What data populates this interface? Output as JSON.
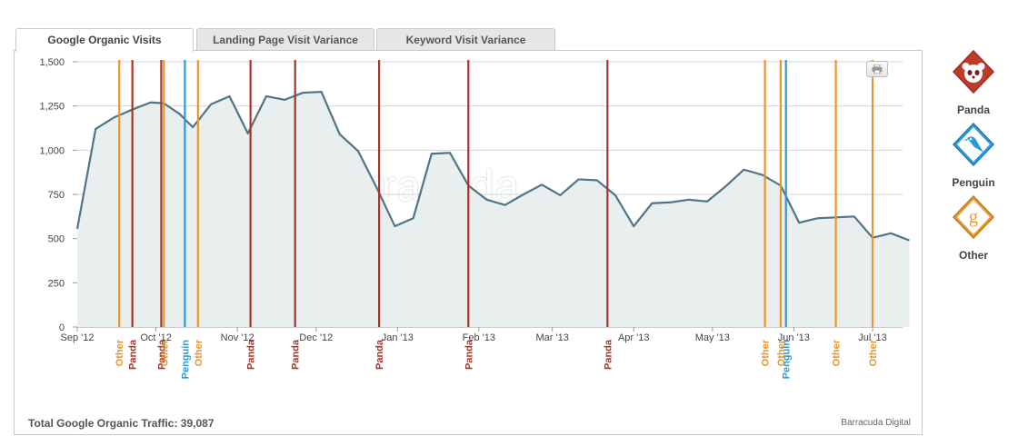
{
  "tabs": [
    {
      "label": "Google Organic Visits",
      "active": true
    },
    {
      "label": "Landing Page Visit Variance",
      "active": false
    },
    {
      "label": "Keyword Visit Variance",
      "active": false
    }
  ],
  "footer": {
    "total_label": "Total Google Organic Traffic: 39,087",
    "brand": "Barracuda Digital"
  },
  "watermark": "barracuda",
  "legend": [
    {
      "label": "Panda",
      "icon": "panda-icon",
      "color": "#c0392b"
    },
    {
      "label": "Penguin",
      "icon": "penguin-icon",
      "color": "#2c9ad8"
    },
    {
      "label": "Other",
      "icon": "google-g-icon",
      "color": "#e8962e"
    }
  ],
  "colors": {
    "line": "#4f7586",
    "area": "#e9efef",
    "grid": "#d6d6d6",
    "panda": "#a4362a",
    "penguin": "#2c9ad8",
    "other": "#e8962e"
  },
  "chart_data": {
    "type": "area",
    "title": "",
    "xlabel": "",
    "ylabel": "",
    "ylim": [
      0,
      1500
    ],
    "y_ticks": [
      "0",
      "250",
      "500",
      "750",
      "1,000",
      "1,250",
      "1,500"
    ],
    "y_tick_values": [
      0,
      250,
      500,
      750,
      1000,
      1250,
      1500
    ],
    "x_tick_labels": [
      "Sep '12",
      "Oct '12",
      "Nov '12",
      "Dec '12",
      "Jan '13",
      "Feb '13",
      "Mar '13",
      "Apr '13",
      "May '13",
      "Jun '13",
      "Jul '13"
    ],
    "x_tick_dates": [
      "2012-09-01",
      "2012-10-01",
      "2012-11-01",
      "2012-12-01",
      "2013-01-01",
      "2013-02-01",
      "2013-03-01",
      "2013-04-01",
      "2013-05-01",
      "2013-06-01",
      "2013-07-01"
    ],
    "grid": true,
    "series": [
      {
        "values": [
          {
            "x": "2012-09-01",
            "y": 555
          },
          {
            "x": "2012-09-08",
            "y": 1120
          },
          {
            "x": "2012-09-15",
            "y": 1185
          },
          {
            "x": "2012-09-22",
            "y": 1230
          },
          {
            "x": "2012-09-29",
            "y": 1270
          },
          {
            "x": "2012-10-04",
            "y": 1265
          },
          {
            "x": "2012-10-10",
            "y": 1205
          },
          {
            "x": "2012-10-15",
            "y": 1130
          },
          {
            "x": "2012-10-22",
            "y": 1260
          },
          {
            "x": "2012-10-29",
            "y": 1305
          },
          {
            "x": "2012-11-05",
            "y": 1095
          },
          {
            "x": "2012-11-12",
            "y": 1305
          },
          {
            "x": "2012-11-19",
            "y": 1285
          },
          {
            "x": "2012-11-26",
            "y": 1325
          },
          {
            "x": "2012-12-03",
            "y": 1330
          },
          {
            "x": "2012-12-10",
            "y": 1090
          },
          {
            "x": "2012-12-17",
            "y": 995
          },
          {
            "x": "2012-12-24",
            "y": 790
          },
          {
            "x": "2012-12-31",
            "y": 570
          },
          {
            "x": "2013-01-07",
            "y": 615
          },
          {
            "x": "2013-01-14",
            "y": 980
          },
          {
            "x": "2013-01-21",
            "y": 985
          },
          {
            "x": "2013-01-28",
            "y": 800
          },
          {
            "x": "2013-02-04",
            "y": 720
          },
          {
            "x": "2013-02-11",
            "y": 690
          },
          {
            "x": "2013-02-18",
            "y": 750
          },
          {
            "x": "2013-02-25",
            "y": 805
          },
          {
            "x": "2013-03-04",
            "y": 745
          },
          {
            "x": "2013-03-11",
            "y": 835
          },
          {
            "x": "2013-03-18",
            "y": 830
          },
          {
            "x": "2013-03-25",
            "y": 745
          },
          {
            "x": "2013-04-01",
            "y": 570
          },
          {
            "x": "2013-04-08",
            "y": 700
          },
          {
            "x": "2013-04-15",
            "y": 705
          },
          {
            "x": "2013-04-22",
            "y": 720
          },
          {
            "x": "2013-04-29",
            "y": 710
          },
          {
            "x": "2013-05-06",
            "y": 795
          },
          {
            "x": "2013-05-13",
            "y": 890
          },
          {
            "x": "2013-05-20",
            "y": 860
          },
          {
            "x": "2013-05-27",
            "y": 800
          },
          {
            "x": "2013-06-03",
            "y": 590
          },
          {
            "x": "2013-06-10",
            "y": 615
          },
          {
            "x": "2013-06-17",
            "y": 620
          },
          {
            "x": "2013-06-24",
            "y": 625
          },
          {
            "x": "2013-07-01",
            "y": 505
          },
          {
            "x": "2013-07-08",
            "y": 530
          },
          {
            "x": "2013-07-15",
            "y": 490
          }
        ]
      }
    ],
    "annotations": [
      {
        "date": "2012-09-17",
        "label": "Other",
        "type": "other"
      },
      {
        "date": "2012-09-22",
        "label": "Panda",
        "type": "panda"
      },
      {
        "date": "2012-10-03",
        "label": "Panda",
        "type": "panda"
      },
      {
        "date": "2012-10-04",
        "label": "Other",
        "type": "other"
      },
      {
        "date": "2012-10-12",
        "label": "Penguin",
        "type": "penguin"
      },
      {
        "date": "2012-10-17",
        "label": "Other",
        "type": "other"
      },
      {
        "date": "2012-11-06",
        "label": "Panda",
        "type": "panda"
      },
      {
        "date": "2012-11-23",
        "label": "Panda",
        "type": "panda"
      },
      {
        "date": "2012-12-25",
        "label": "Panda",
        "type": "panda"
      },
      {
        "date": "2013-01-28",
        "label": "Panda",
        "type": "panda"
      },
      {
        "date": "2013-03-22",
        "label": "Panda",
        "type": "panda"
      },
      {
        "date": "2013-05-21",
        "label": "Other",
        "type": "other"
      },
      {
        "date": "2013-05-27",
        "label": "Other",
        "type": "other"
      },
      {
        "date": "2013-05-29",
        "label": "Penguin",
        "type": "penguin"
      },
      {
        "date": "2013-06-17",
        "label": "Other",
        "type": "other"
      },
      {
        "date": "2013-07-01",
        "label": "Other",
        "type": "other"
      }
    ]
  }
}
